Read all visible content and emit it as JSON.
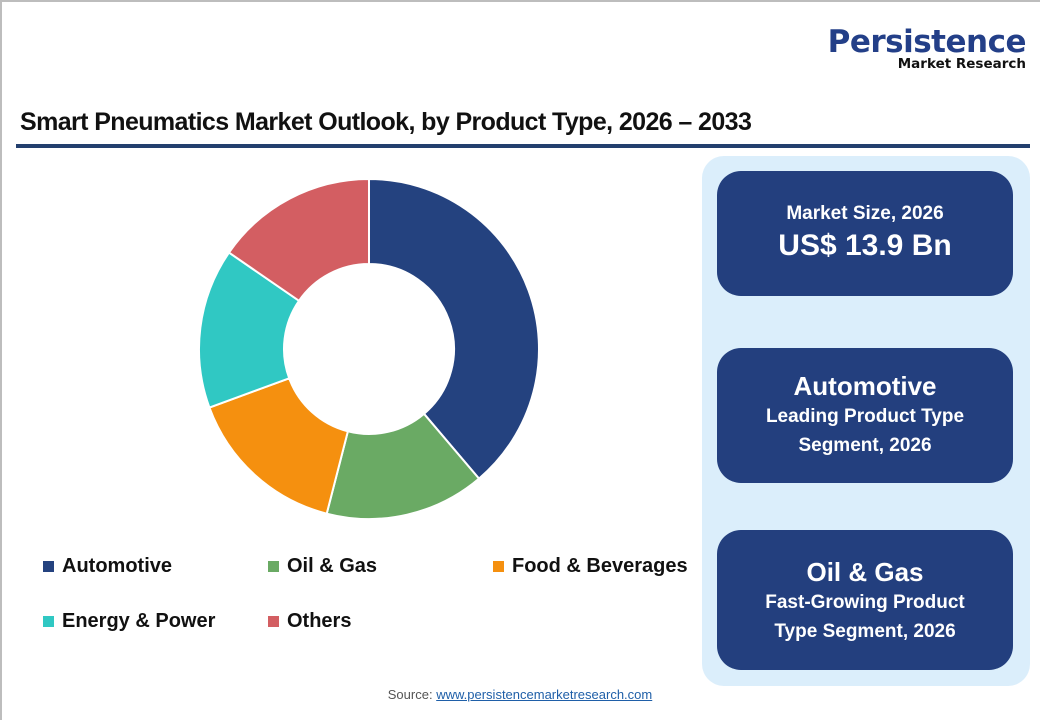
{
  "logo": {
    "main": "Persistence",
    "sub": "Market Research"
  },
  "title": "Smart Pneumatics Market Outlook, by Product Type, 2026 – 2033",
  "colors": {
    "automotive": "#24427f",
    "oil_gas": "#6aaa64",
    "food_beverages": "#f5900f",
    "energy_power": "#30c8c3",
    "others": "#d35e62",
    "title_rule": "#233f6e",
    "panel_bg": "#dbeefb",
    "card_bg": "#233f7e"
  },
  "legend": [
    {
      "label": "Automotive",
      "color": "#24427f"
    },
    {
      "label": "Oil & Gas",
      "color": "#6aaa64"
    },
    {
      "label": "Food & Beverages",
      "color": "#f5900f"
    },
    {
      "label": "Energy & Power",
      "color": "#30c8c3"
    },
    {
      "label": "Others",
      "color": "#d35e62"
    }
  ],
  "cards": {
    "market_size": {
      "label": "Market Size, 2026",
      "value": "US$ 13.9 Bn"
    },
    "leading": {
      "title": "Automotive",
      "line1": "Leading Product Type",
      "line2": "Segment, 2026"
    },
    "fastest": {
      "title": "Oil & Gas",
      "line1": "Fast-Growing Product",
      "line2": "Type Segment, 2026"
    }
  },
  "source": {
    "label": "Source:",
    "link": "www.persistencemarketresearch.com"
  },
  "chart_data": {
    "type": "pie",
    "subtype": "donut",
    "title": "Smart Pneumatics Market Outlook, by Product Type, 2026 – 2033",
    "categories": [
      "Automotive",
      "Oil & Gas",
      "Food & Beverages",
      "Energy & Power",
      "Others"
    ],
    "values": [
      38.8,
      15.2,
      15.4,
      15.2,
      15.4
    ],
    "unit": "% share (estimated from slice angles)",
    "colors": [
      "#24427f",
      "#6aaa64",
      "#f5900f",
      "#30c8c3",
      "#d35e62"
    ],
    "start_angle": "12 o'clock, clockwise",
    "legend_position": "bottom",
    "data_labels": false
  }
}
